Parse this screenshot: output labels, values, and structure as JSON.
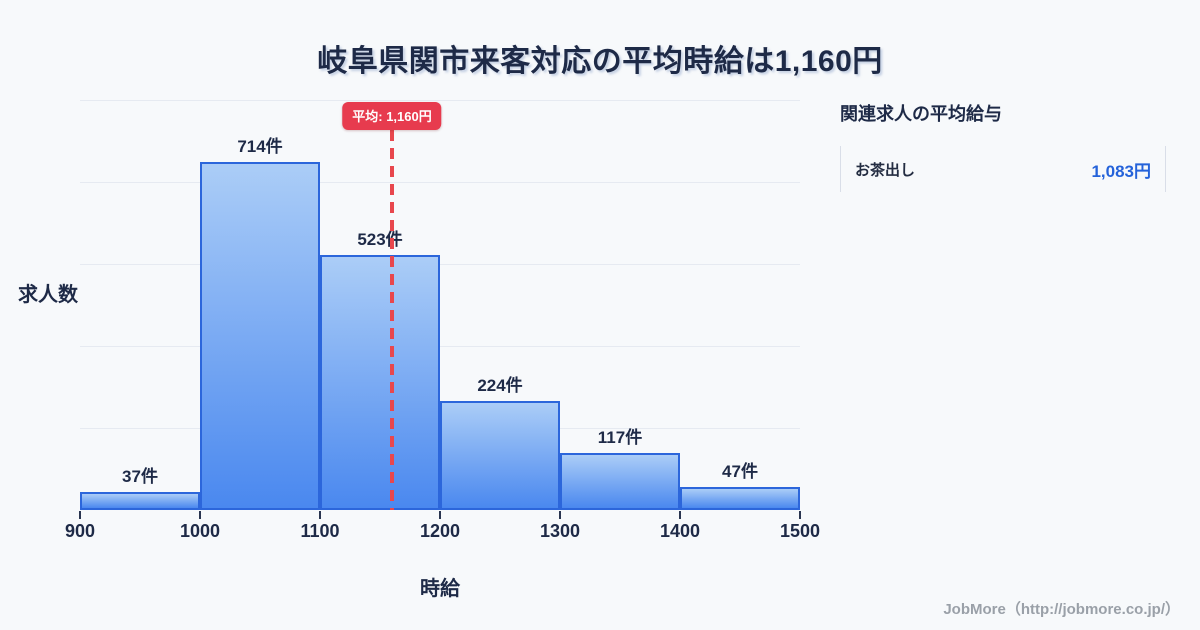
{
  "title": "岐阜県関市来客対応の平均時給は1,160円",
  "chart_data": {
    "type": "bar",
    "subtype": "histogram",
    "title": "岐阜県関市来客対応の平均時給は1,160円",
    "xlabel": "時給",
    "ylabel": "求人数",
    "bin_edges": [
      900,
      1000,
      1100,
      1200,
      1300,
      1400,
      1500
    ],
    "categories": [
      "900-1000",
      "1000-1100",
      "1100-1200",
      "1200-1300",
      "1300-1400",
      "1400-1500"
    ],
    "values": [
      37,
      714,
      523,
      224,
      117,
      47
    ],
    "bar_labels": [
      "37件",
      "714件",
      "523件",
      "224件",
      "117件",
      "47件"
    ],
    "x_tick_labels": [
      "900",
      "1000",
      "1100",
      "1200",
      "1300",
      "1400",
      "1500"
    ],
    "ylim": [
      0,
      840
    ],
    "grid": "horizontal",
    "mean_value": 1160,
    "mean_label": "平均: 1,160円"
  },
  "side_panel": {
    "title": "関連求人の平均給与",
    "rows": [
      {
        "label": "お茶出し",
        "value": "1,083円"
      }
    ]
  },
  "footer": {
    "credit": "JobMore（http://jobmore.co.jp/）"
  },
  "icons": {},
  "colors": {
    "background": "#f7f9fb",
    "ink_navy": "#1e2a47",
    "bar_fill_top": "#abcdf7",
    "bar_fill_bottom": "#4a88ef",
    "bar_border": "#2c66db",
    "grid_line": "#e6eaf1",
    "mean_red": "#e73b4e",
    "mean_dash": "#e8474d",
    "value_blue": "#2563da",
    "panel_border": "#d9dee8",
    "footer_gray": "#9aa0a8"
  }
}
